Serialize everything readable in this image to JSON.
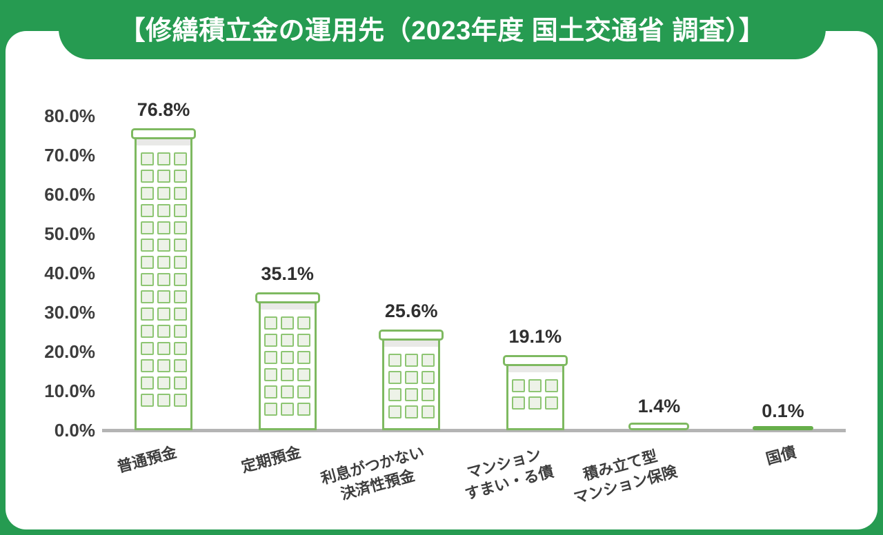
{
  "banner": {
    "title": "【修繕積立金の運用先（2023年度 国土交通省 調査）】"
  },
  "colors": {
    "background_green": "#269b51",
    "card_white": "#ffffff",
    "bar_outline_green": "#7eb960",
    "window_outline_green": "#8dc572",
    "window_fill_green": "#edf2e8",
    "roof_shadow_gray": "#e9e9e7",
    "axis_gray": "#b4b4b4",
    "flat_bar_green": "#66ae4a",
    "text_dark": "#3d3d3d",
    "title_text_white": "#ffffff"
  },
  "chart_data": {
    "type": "bar",
    "title": "【修繕積立金の運用先（2023年度 国土交通省 調査）】",
    "categories": [
      "普通預金",
      "定期預金",
      "利息がつかない\n決済性預金",
      "マンション\nすまい・る債",
      "積み立て型\nマンション保険",
      "国債"
    ],
    "values": [
      76.8,
      35.1,
      25.6,
      19.1,
      1.4,
      0.1
    ],
    "value_labels": [
      "76.8%",
      "35.1%",
      "25.6%",
      "19.1%",
      "1.4%",
      "0.1%"
    ],
    "xlabel": "",
    "ylabel": "",
    "ylim": [
      0,
      80
    ],
    "grid": false,
    "legend": false,
    "yticks": [
      {
        "label": "80.0%",
        "value": 80
      },
      {
        "label": "70.0%",
        "value": 70
      },
      {
        "label": "60.0%",
        "value": 60
      },
      {
        "label": "50.0%",
        "value": 50
      },
      {
        "label": "40.0%",
        "value": 40
      },
      {
        "label": "30.0%",
        "value": 30
      },
      {
        "label": "20.0%",
        "value": 20
      },
      {
        "label": "10.0%",
        "value": 10
      },
      {
        "label": "0.0%",
        "value": 0
      }
    ],
    "bar_pictogram": {
      "style": "building",
      "window_columns": 3,
      "window_rows": [
        15,
        6,
        4,
        2,
        0,
        0
      ]
    }
  }
}
